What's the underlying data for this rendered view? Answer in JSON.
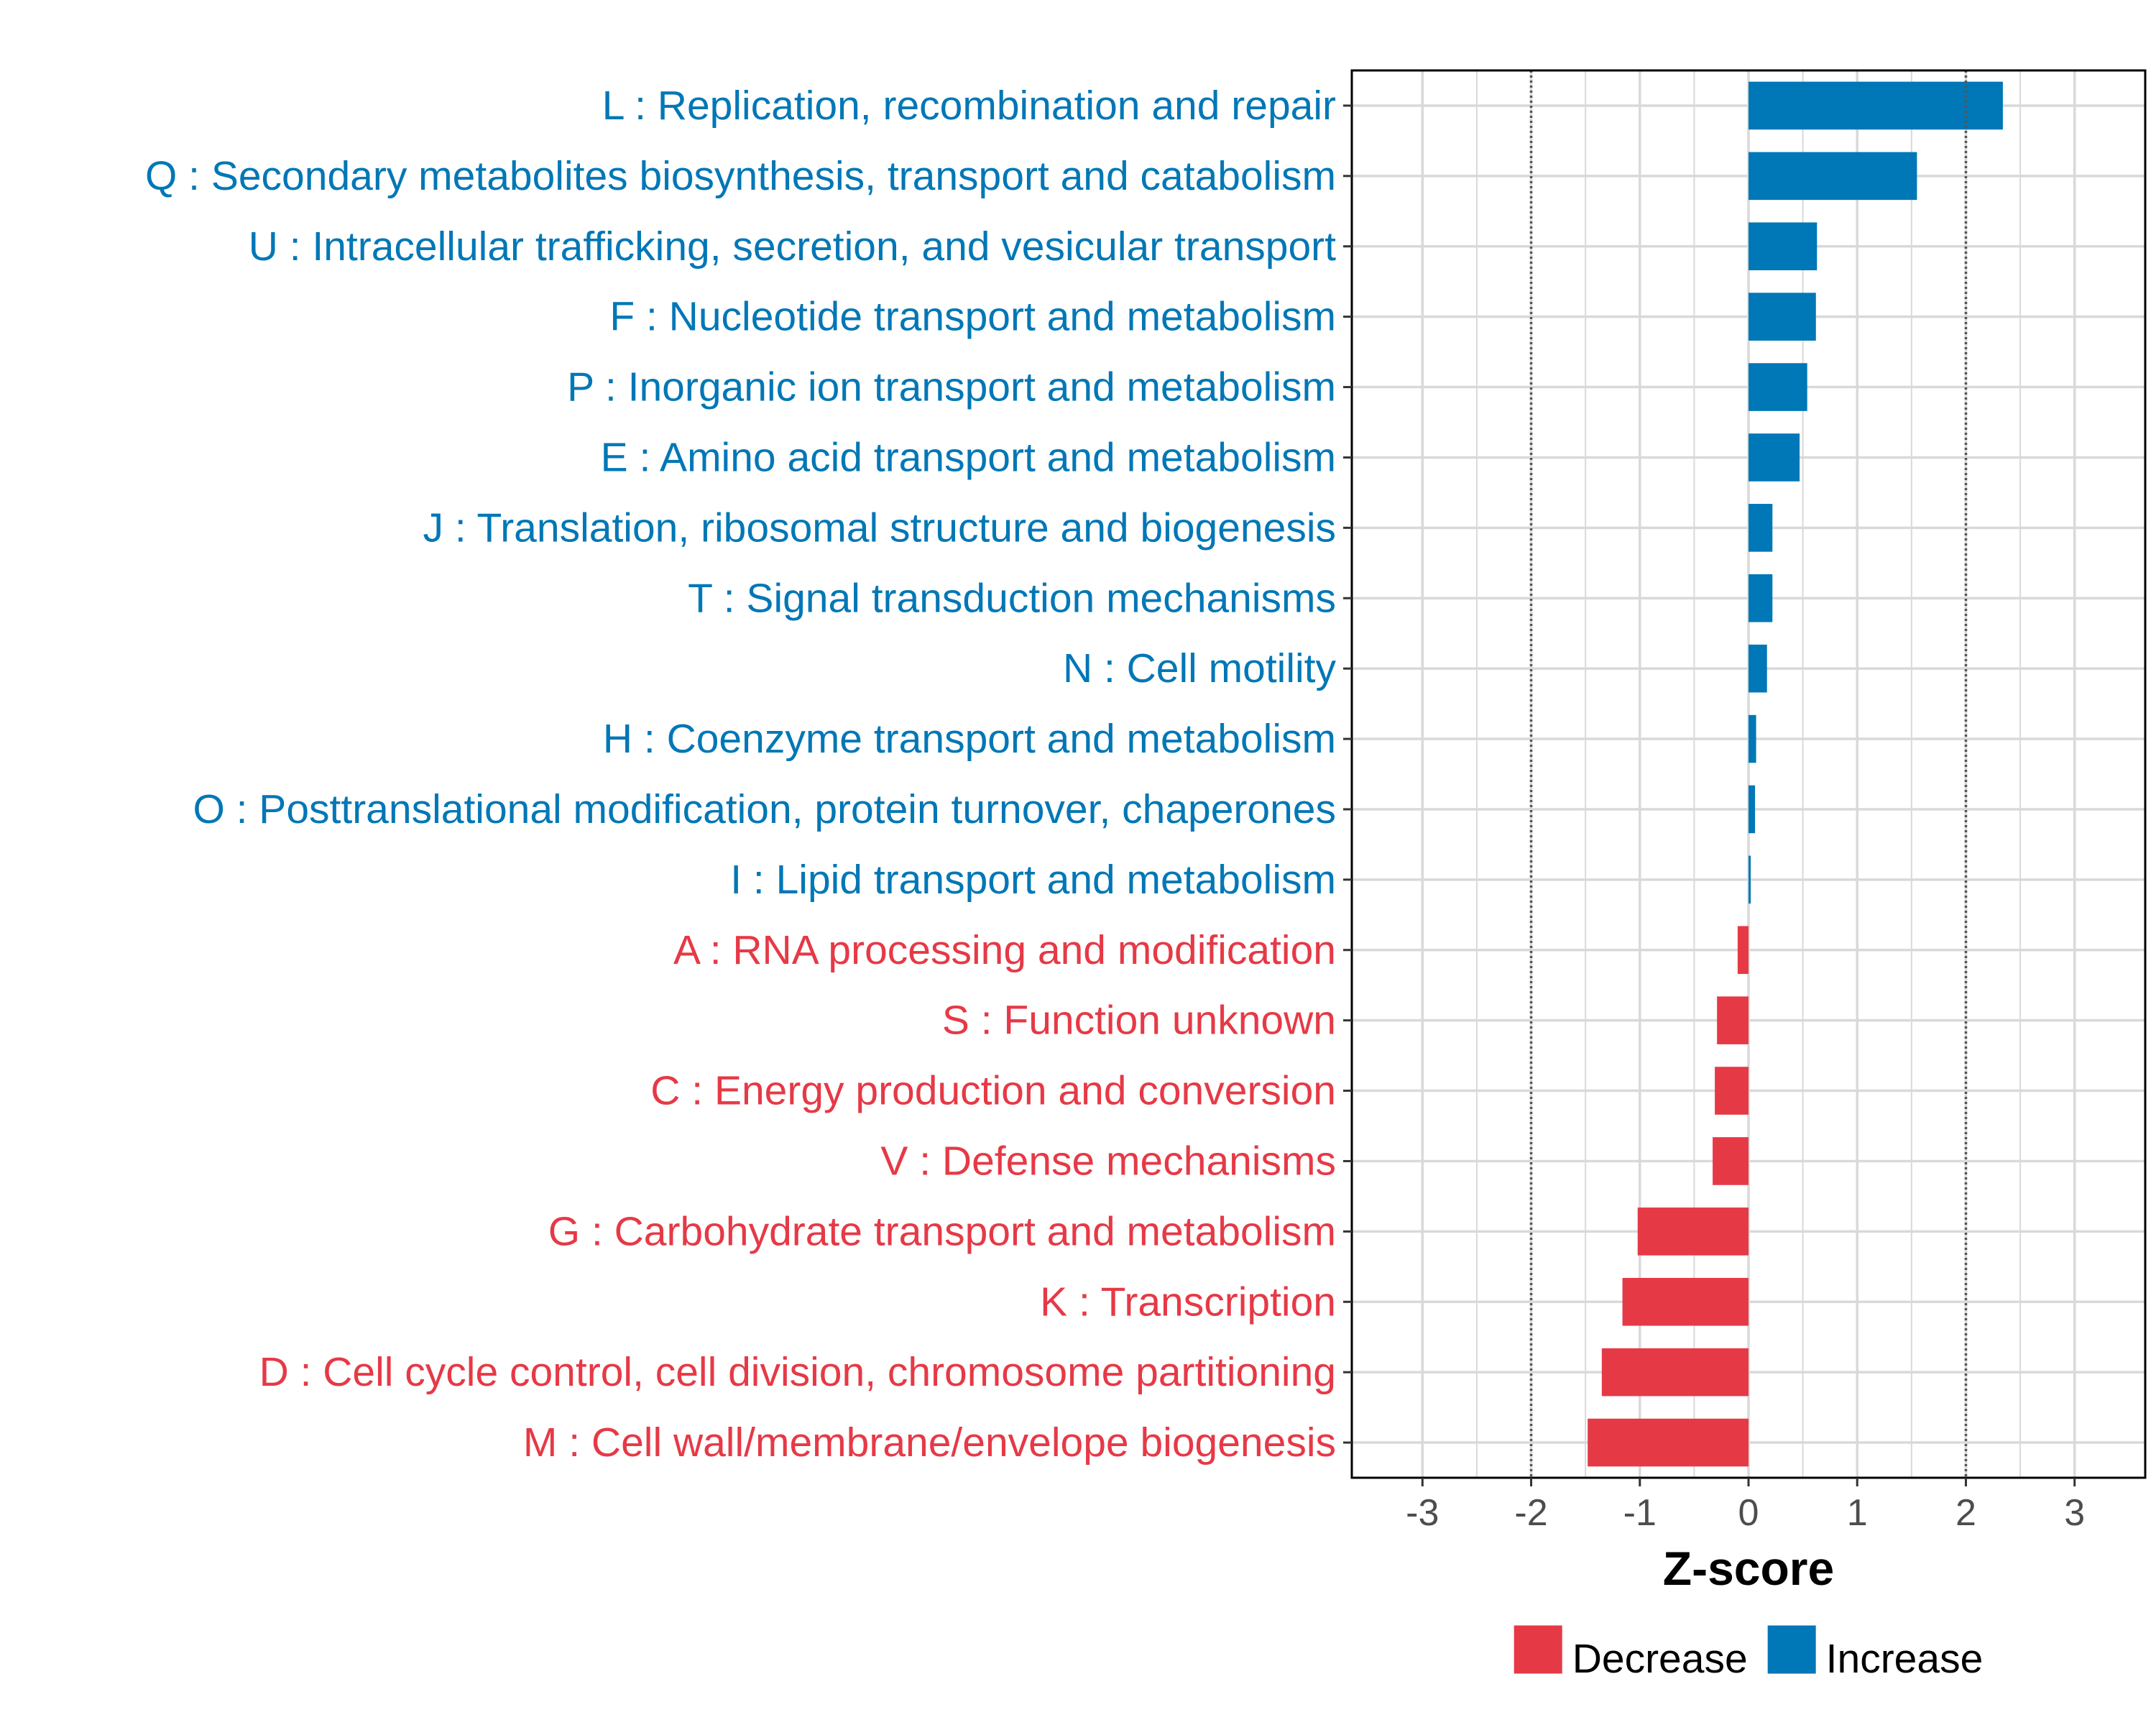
{
  "chart_data": {
    "type": "bar",
    "orientation": "horizontal",
    "xlabel": "Z-score",
    "ylabel": "",
    "xlim": [
      -3.65,
      3.65
    ],
    "xticks": [
      -3,
      -2,
      -1,
      0,
      1,
      2,
      3
    ],
    "tick_labels": [
      "-3",
      "-2",
      "-1",
      "0",
      "1",
      "2",
      "3"
    ],
    "reference_lines": [
      -2,
      2
    ],
    "grid": true,
    "categories": [
      "L : Replication, recombination and repair",
      "Q : Secondary metabolites biosynthesis, transport and catabolism",
      "U : Intracellular trafficking, secretion, and vesicular transport",
      "F : Nucleotide transport and metabolism",
      "P : Inorganic ion transport and metabolism",
      "E : Amino acid transport and metabolism",
      "J : Translation, ribosomal structure and biogenesis",
      "T : Signal transduction mechanisms",
      "N : Cell motility",
      "H : Coenzyme transport and metabolism",
      "O : Posttranslational modification, protein turnover, chaperones",
      "I : Lipid transport and metabolism",
      "A : RNA processing and modification",
      "S : Function unknown",
      "C : Energy production and conversion",
      "V : Defense mechanisms",
      "G : Carbohydrate transport and metabolism",
      "K : Transcription",
      "D : Cell cycle control, cell division, chromosome partitioning",
      "M : Cell wall/membrane/envelope biogenesis"
    ],
    "values": [
      2.34,
      1.55,
      0.63,
      0.62,
      0.54,
      0.47,
      0.22,
      0.22,
      0.17,
      0.07,
      0.06,
      0.02,
      -0.1,
      -0.29,
      -0.31,
      -0.33,
      -1.02,
      -1.16,
      -1.35,
      -1.48
    ],
    "legend": {
      "position": "bottom",
      "entries": [
        {
          "label": "Decrease",
          "color": "#E63946"
        },
        {
          "label": "Increase",
          "color": "#0077B6"
        }
      ]
    }
  },
  "colors": {
    "increase": "#0077B6",
    "decrease": "#E63946",
    "grid": "#d9d9d9",
    "reference_line": "#555555",
    "panel_border": "#000000"
  }
}
